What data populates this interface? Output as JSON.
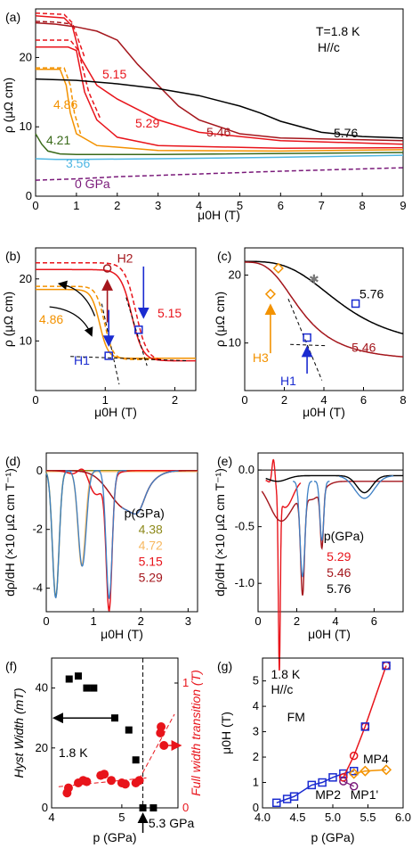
{
  "colors": {
    "black": "#000000",
    "red": "#e8141b",
    "dark_red": "#a4161c",
    "mid_red": "#c51f25",
    "orange": "#f39200",
    "light_orange": "#f7b860",
    "green": "#3a6a1a",
    "olive": "#8e8a1c",
    "cyan": "#4fb7e3",
    "purple": "#7a1a7a",
    "blue": "#1a2bd0",
    "steel": "#3d7fc4",
    "gray": "#777777"
  },
  "chart_data": [
    {
      "panel": "(a)",
      "type": "line",
      "annotations": [
        "T=1.8 K",
        "H//c"
      ],
      "xlabel": "μ0H (T)",
      "ylabel": "ρ (μΩ cm)",
      "xlim": [
        0,
        9
      ],
      "ylim": [
        0,
        27
      ],
      "xticks": [
        "0",
        "1",
        "2",
        "3",
        "4",
        "5",
        "6",
        "7",
        "8",
        "9"
      ],
      "yticks": [
        "0",
        "10",
        "20"
      ],
      "series": [
        {
          "name": "0 GPa",
          "color": "purple",
          "dashed": true,
          "x": [
            0,
            1,
            2,
            4,
            6,
            9
          ],
          "y": [
            2.3,
            2.5,
            2.8,
            3.2,
            3.6,
            4.1
          ]
        },
        {
          "name": "3.56",
          "color": "cyan",
          "x": [
            0,
            0.5,
            1,
            3,
            6,
            9
          ],
          "y": [
            5.4,
            5.3,
            5.3,
            5.4,
            5.6,
            5.9
          ]
        },
        {
          "name": "4.21",
          "color": "green",
          "x": [
            0,
            0.15,
            0.3,
            0.6,
            1,
            3,
            9
          ],
          "y": [
            9,
            7.5,
            6.5,
            6.1,
            6,
            6,
            6.3
          ]
        },
        {
          "name": "4.86",
          "color": "orange",
          "x": [
            0,
            0.6,
            0.75,
            0.85,
            1.0,
            1.5,
            3,
            6,
            9
          ],
          "y": [
            18.3,
            18.3,
            16,
            12,
            9,
            7.3,
            6.6,
            6.5,
            6.7
          ]
        },
        {
          "name": "4.86 up",
          "color": "orange",
          "dashed": true,
          "x": [
            0,
            0.7,
            0.85,
            0.95,
            1.1
          ],
          "y": [
            18.5,
            18.5,
            16,
            12,
            9
          ]
        },
        {
          "name": "5.15",
          "color": "red",
          "x": [
            0,
            0.8,
            1.0,
            1.2,
            1.5,
            2,
            3,
            6,
            9
          ],
          "y": [
            21.5,
            21.5,
            21,
            15,
            11,
            8.5,
            7.3,
            6.9,
            7
          ]
        },
        {
          "name": "5.15 up",
          "color": "red",
          "dashed": true,
          "x": [
            0,
            0.85,
            1.05,
            1.3,
            1.6
          ],
          "y": [
            22.5,
            22.5,
            21,
            15,
            11
          ]
        },
        {
          "name": "5.29",
          "color": "red",
          "x": [
            0,
            0.7,
            0.9,
            1.1,
            1.5,
            2,
            3,
            4,
            6,
            9
          ],
          "y": [
            26,
            25.7,
            24.5,
            20,
            16,
            14,
            11,
            9.2,
            8,
            7.5
          ]
        },
        {
          "name": "5.29 up",
          "color": "red",
          "dashed": true,
          "x": [
            0,
            0.7,
            0.9,
            1.2
          ],
          "y": [
            26.4,
            26.2,
            25,
            20
          ]
        },
        {
          "name": "5.46",
          "color": "dark_red",
          "x": [
            0,
            0.5,
            1,
            1.5,
            2,
            2.5,
            3,
            3.5,
            4,
            5,
            6,
            9
          ],
          "y": [
            25,
            24.8,
            24.4,
            23.8,
            22.5,
            19,
            16,
            13,
            11,
            9,
            8.4,
            8
          ]
        },
        {
          "name": "5.46 up",
          "color": "dark_red",
          "dashed": true,
          "x": [
            0,
            0.5,
            0.9
          ],
          "y": [
            25.2,
            25.1,
            24.8
          ]
        },
        {
          "name": "5.76",
          "color": "black",
          "x": [
            0,
            1,
            2,
            3,
            4,
            5,
            5.5,
            6,
            7,
            8,
            9
          ],
          "y": [
            16.9,
            16.7,
            16.2,
            15.5,
            14.5,
            13,
            12,
            10.8,
            9.2,
            8.6,
            8.4
          ]
        }
      ],
      "labels": [
        "5.15",
        "4.86",
        "5.29",
        "5.46",
        "5.76",
        "4.21",
        "3.56",
        "0 GPa"
      ]
    },
    {
      "panel": "(b)",
      "type": "line",
      "xlabel": "μ0H (T)",
      "ylabel": "ρ (μΩ cm)",
      "xlim": [
        0,
        2.3
      ],
      "ylim": [
        2,
        25
      ],
      "xticks": [
        "0",
        "1",
        "2"
      ],
      "yticks": [
        "10",
        "20"
      ],
      "labels": [
        "H2",
        "H1",
        "4.86",
        "5.15"
      ]
    },
    {
      "panel": "(c)",
      "type": "line",
      "xlabel": "μ0H (T)",
      "ylabel": "ρ (μΩ cm)",
      "xlim": [
        0,
        8
      ],
      "ylim": [
        3,
        24
      ],
      "xticks": [
        "0",
        "2",
        "4",
        "6",
        "8"
      ],
      "yticks": [
        "10",
        "20"
      ],
      "labels": [
        "5.76",
        "5.46",
        "H3",
        "H1"
      ]
    },
    {
      "panel": "(d)",
      "type": "line",
      "xlabel": "μ0H (T)",
      "ylabel": "dρ/dH (×10 μΩ cm T⁻¹)",
      "xlim": [
        0,
        3.2
      ],
      "ylim": [
        -4.8,
        0.6
      ],
      "xticks": [
        "0",
        "1",
        "2",
        "3"
      ],
      "yticks": [
        "0",
        "-2",
        "-4"
      ],
      "legend_title": "p(GPa)",
      "legend": [
        "4.38",
        "4.72",
        "5.15",
        "5.29"
      ]
    },
    {
      "panel": "(e)",
      "type": "line",
      "xlabel": "μ0H (T)",
      "ylabel": "dρ/dH (×10 μΩ cm T⁻¹)",
      "xlim": [
        0,
        7.5
      ],
      "ylim": [
        -1.25,
        0.15
      ],
      "xticks": [
        "0",
        "2",
        "4",
        "6"
      ],
      "yticks": [
        "0.0",
        "-0.5",
        "-1.0"
      ],
      "legend_title": "p(GPa)",
      "legend": [
        "5.29",
        "5.46",
        "5.76"
      ]
    },
    {
      "panel": "(f)",
      "type": "scatter",
      "xlabel": "p (GPa)",
      "ylabel_left": "Hyst Width",
      "ylabel_left_unit": "(mT)",
      "ylabel_right": "Full width transition (T)",
      "xlim": [
        4,
        5.8
      ],
      "ylim_left": [
        0,
        50
      ],
      "ylim_right": [
        0,
        1.2
      ],
      "xticks": [
        "4",
        "5"
      ],
      "yticks_left": [
        "0",
        "20",
        "40"
      ],
      "yticks_right": [
        "0",
        "1"
      ],
      "annotations": [
        "1.8 K",
        "5.3 GPa"
      ],
      "hyst": {
        "x": [
          4.25,
          4.38,
          4.5,
          4.6,
          4.9,
          5.1,
          5.2,
          5.3,
          5.45
        ],
        "y": [
          43,
          44,
          40,
          40,
          30,
          26,
          16,
          0,
          0
        ]
      },
      "width": {
        "x": [
          4.22,
          4.24,
          4.38,
          4.45,
          4.5,
          4.7,
          4.75,
          4.85,
          5.0,
          5.05,
          5.2,
          5.25,
          5.55,
          5.56,
          5.6
        ],
        "y": [
          0.12,
          0.16,
          0.2,
          0.22,
          0.21,
          0.26,
          0.27,
          0.22,
          0.2,
          0.19,
          0.2,
          0.22,
          0.6,
          0.65,
          0.5
        ]
      }
    },
    {
      "panel": "(g)",
      "type": "line",
      "xlabel": "p (GPa)",
      "ylabel": "μ0H (T)",
      "xlim": [
        4.0,
        6.0
      ],
      "ylim": [
        0,
        5.9
      ],
      "xticks": [
        "4.0",
        "4.5",
        "5.0",
        "5.5",
        "6.0"
      ],
      "yticks": [
        "0",
        "1",
        "2",
        "3",
        "4",
        "5"
      ],
      "annotations": [
        "1.8 K",
        "H//c",
        "FM",
        "MP4",
        "MP2",
        "MP1'"
      ],
      "H1": {
        "x": [
          4.2,
          4.35,
          4.45,
          4.7,
          4.85,
          5.0,
          5.15,
          5.3
        ],
        "y": [
          0.2,
          0.35,
          0.45,
          0.9,
          1.0,
          1.2,
          1.35,
          1.45
        ]
      },
      "H2": {
        "x": [
          5.15,
          5.3,
          5.46,
          5.76
        ],
        "y": [
          1.2,
          2.05,
          3.2,
          5.6
        ]
      },
      "H3": {
        "x": [
          5.3,
          5.46,
          5.76
        ],
        "y": [
          1.35,
          1.45,
          1.5
        ]
      },
      "MP1": {
        "x": [
          5.15,
          5.3
        ],
        "y": [
          1.05,
          0.85
        ]
      }
    }
  ]
}
